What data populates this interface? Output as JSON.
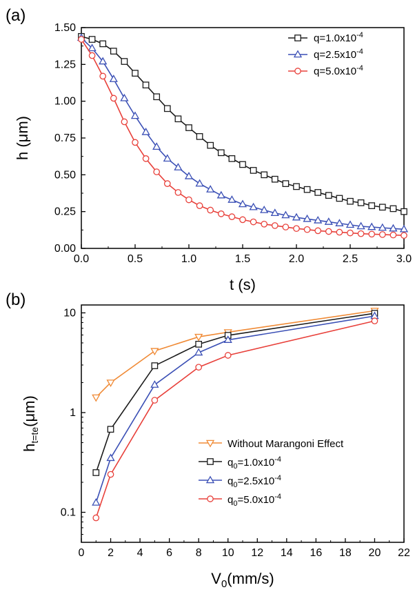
{
  "chart_data": [
    {
      "panel_label": "(a)",
      "type": "line",
      "xlabel": "t (s)",
      "ylabel": "h (μm)",
      "xlim": [
        0,
        3.0
      ],
      "ylim": [
        0,
        1.5
      ],
      "x_ticks": [
        "0.0",
        "0.5",
        "1.0",
        "1.5",
        "2.0",
        "2.5",
        "3.0"
      ],
      "y_ticks": [
        "0.00",
        "0.25",
        "0.50",
        "0.75",
        "1.00",
        "1.25",
        "1.50"
      ],
      "legend_position": "top-right",
      "x": [
        0.0,
        0.1,
        0.2,
        0.3,
        0.4,
        0.5,
        0.6,
        0.7,
        0.8,
        0.9,
        1.0,
        1.1,
        1.2,
        1.3,
        1.4,
        1.5,
        1.6,
        1.7,
        1.8,
        1.9,
        2.0,
        2.1,
        2.2,
        2.3,
        2.4,
        2.5,
        2.6,
        2.7,
        2.8,
        2.9,
        3.0
      ],
      "series": [
        {
          "name": "q=1.0x10⁻⁴",
          "marker": "square",
          "color": "#1a1a1a",
          "values": [
            1.44,
            1.42,
            1.39,
            1.34,
            1.27,
            1.19,
            1.11,
            1.03,
            0.95,
            0.88,
            0.82,
            0.76,
            0.7,
            0.65,
            0.61,
            0.57,
            0.53,
            0.5,
            0.47,
            0.44,
            0.42,
            0.4,
            0.38,
            0.36,
            0.34,
            0.32,
            0.31,
            0.29,
            0.28,
            0.27,
            0.25
          ]
        },
        {
          "name": "q=2.5x10⁻⁴",
          "marker": "triangle-up",
          "color": "#3a4fb5",
          "values": [
            1.43,
            1.36,
            1.27,
            1.15,
            1.02,
            0.9,
            0.79,
            0.69,
            0.61,
            0.55,
            0.49,
            0.44,
            0.4,
            0.36,
            0.33,
            0.3,
            0.28,
            0.26,
            0.24,
            0.225,
            0.21,
            0.2,
            0.19,
            0.18,
            0.17,
            0.16,
            0.15,
            0.145,
            0.14,
            0.135,
            0.13
          ]
        },
        {
          "name": "q=5.0x10⁻⁴",
          "marker": "circle",
          "color": "#e8403a",
          "values": [
            1.42,
            1.31,
            1.17,
            1.02,
            0.86,
            0.72,
            0.61,
            0.52,
            0.44,
            0.38,
            0.33,
            0.29,
            0.26,
            0.235,
            0.215,
            0.195,
            0.18,
            0.165,
            0.155,
            0.145,
            0.135,
            0.128,
            0.12,
            0.115,
            0.11,
            0.105,
            0.1,
            0.097,
            0.094,
            0.091,
            0.088
          ]
        }
      ]
    },
    {
      "panel_label": "(b)",
      "type": "line",
      "xlabel": "V₀(mm/s)",
      "ylabel": "h_t=te(μm)",
      "ylabel_main": "h",
      "ylabel_sub": "t=te",
      "ylabel_unit": "(μm)",
      "y_scale": "log",
      "xlim": [
        0,
        22
      ],
      "ylim": [
        0.05,
        12
      ],
      "x_ticks": [
        "0",
        "2",
        "4",
        "6",
        "8",
        "10",
        "12",
        "14",
        "16",
        "18",
        "20",
        "22"
      ],
      "y_ticks": [
        0.1,
        1,
        10
      ],
      "y_tick_labels": [
        "0.1",
        "1",
        "10"
      ],
      "legend_position": "bottom-right",
      "x": [
        1,
        2,
        5,
        8,
        10,
        20
      ],
      "series": [
        {
          "name": "Without Marangoni Effect",
          "marker": "triangle-down",
          "color": "#f08a35",
          "values": [
            1.42,
            2.0,
            4.15,
            5.75,
            6.4,
            10.5
          ]
        },
        {
          "name": "q₀=1.0x10⁻⁴",
          "marker": "square",
          "color": "#1a1a1a",
          "values": [
            0.25,
            0.68,
            2.95,
            4.85,
            5.95,
            9.9
          ]
        },
        {
          "name": "q₀=2.5x10⁻⁴",
          "marker": "triangle-up",
          "color": "#3a4fb5",
          "values": [
            0.125,
            0.35,
            1.9,
            4.0,
            5.35,
            9.3
          ]
        },
        {
          "name": "q₀=5.0x10⁻⁴",
          "marker": "circle",
          "color": "#e8403a",
          "values": [
            0.088,
            0.24,
            1.33,
            2.85,
            3.75,
            8.3
          ]
        }
      ]
    }
  ]
}
